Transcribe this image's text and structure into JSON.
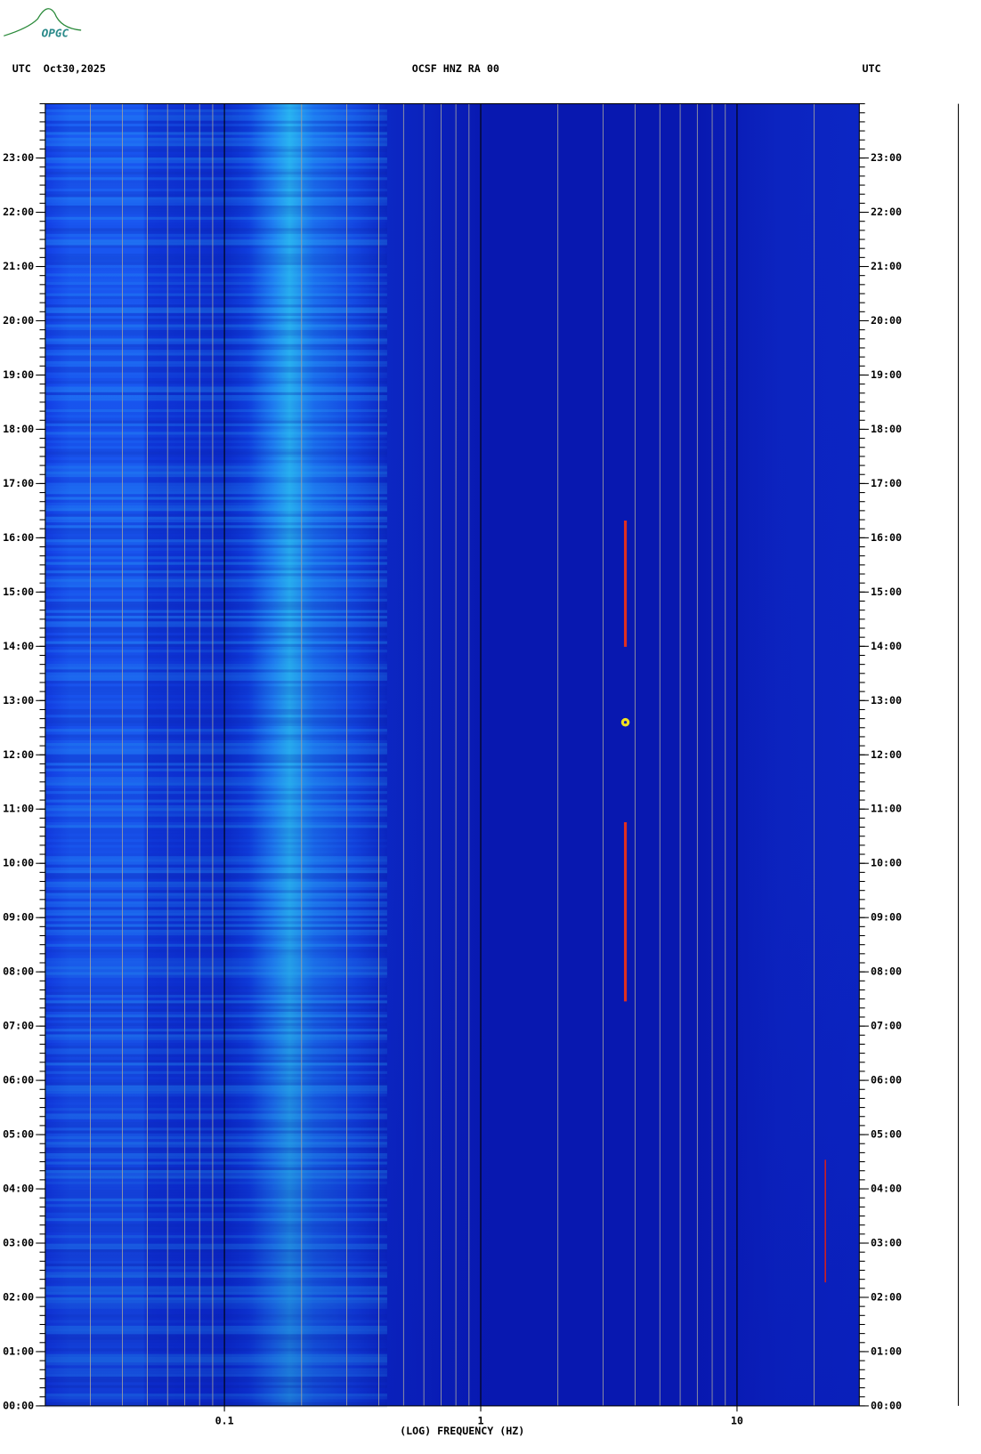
{
  "chart_data": {
    "type": "spectrogram",
    "logo": "OPGC",
    "title": "OCSF HNZ RA 00",
    "left_header": "UTC  Oct30,2025",
    "right_header": "UTC",
    "xlabel": "(LOG) FREQUENCY (HZ)",
    "xscale": "log",
    "xlim": [
      0.02,
      30
    ],
    "xticks": [
      0.1,
      1,
      10
    ],
    "ylim": [
      0,
      24
    ],
    "yticks": [
      {
        "value": 0,
        "label": "00:00"
      },
      {
        "value": 1,
        "label": "01:00"
      },
      {
        "value": 2,
        "label": "02:00"
      },
      {
        "value": 3,
        "label": "03:00"
      },
      {
        "value": 4,
        "label": "04:00"
      },
      {
        "value": 5,
        "label": "05:00"
      },
      {
        "value": 6,
        "label": "06:00"
      },
      {
        "value": 7,
        "label": "07:00"
      },
      {
        "value": 8,
        "label": "08:00"
      },
      {
        "value": 9,
        "label": "09:00"
      },
      {
        "value": 10,
        "label": "10:00"
      },
      {
        "value": 11,
        "label": "11:00"
      },
      {
        "value": 12,
        "label": "12:00"
      },
      {
        "value": 13,
        "label": "13:00"
      },
      {
        "value": 14,
        "label": "14:00"
      },
      {
        "value": 15,
        "label": "15:00"
      },
      {
        "value": 16,
        "label": "16:00"
      },
      {
        "value": 17,
        "label": "17:00"
      },
      {
        "value": 18,
        "label": "18:00"
      },
      {
        "value": 19,
        "label": "19:00"
      },
      {
        "value": 20,
        "label": "20:00"
      },
      {
        "value": 21,
        "label": "21:00"
      },
      {
        "value": 22,
        "label": "22:00"
      },
      {
        "value": 23,
        "label": "23:00"
      }
    ],
    "grid": true
  }
}
